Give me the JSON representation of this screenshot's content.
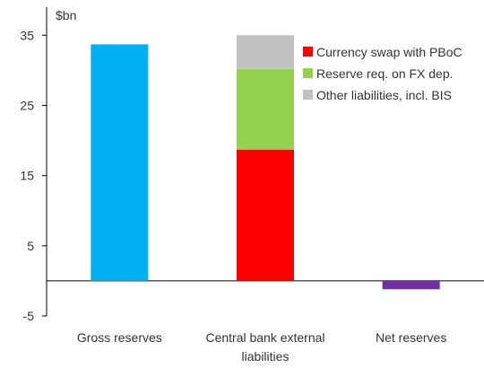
{
  "chart_data": {
    "type": "bar",
    "stacked": true,
    "unit_label": "$bn",
    "title": "",
    "xlabel": "",
    "ylabel": "$bn",
    "ylim": [
      -5,
      39
    ],
    "yticks": [
      -5,
      5,
      15,
      25,
      35
    ],
    "grid": false,
    "legend_position": "top-right",
    "categories": [
      "Gross reserves",
      "Central bank external liabilities",
      "Net reserves"
    ],
    "category_label_lines": [
      [
        "Gross reserves"
      ],
      [
        "Central bank external",
        "liabilities"
      ],
      [
        "Net reserves"
      ]
    ],
    "series": [
      {
        "name": "",
        "color": "#00b0f0",
        "values": [
          33.7,
          0,
          0
        ],
        "in_legend": false
      },
      {
        "name": "Currency swap with PBoC",
        "color": "#ff0000",
        "values": [
          0,
          18.7,
          0
        ],
        "in_legend": true
      },
      {
        "name": "Reserve req. on FX dep.",
        "color": "#92d050",
        "values": [
          0,
          11.5,
          0
        ],
        "in_legend": true
      },
      {
        "name": "Other liabilities, incl. BIS",
        "color": "#c0c0c0",
        "values": [
          0,
          4.8,
          0
        ],
        "in_legend": true
      },
      {
        "name": "",
        "color": "#7030a0",
        "values": [
          0,
          0,
          -1.2
        ],
        "in_legend": false
      }
    ]
  }
}
